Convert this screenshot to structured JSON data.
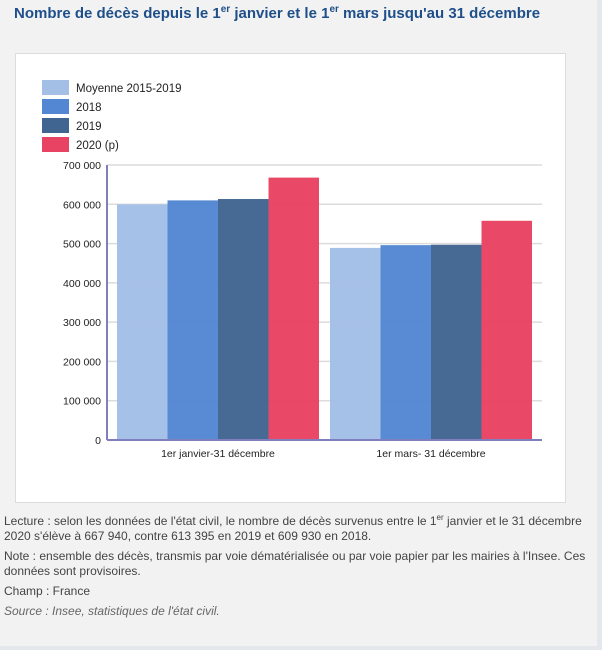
{
  "title": {
    "part1": "Nombre de décès depuis le 1",
    "sup1": "er",
    "part2": " janvier et le 1",
    "sup2": "er",
    "part3": " mars jusqu'au 31 décembre"
  },
  "colors": {
    "moyenne": "#a3bfe6",
    "y2018": "#5487d3",
    "y2019": "#406591",
    "y2020": "#e84362",
    "axis": "#7f7fbf",
    "grid": "#dcdcdc"
  },
  "chart_data": {
    "type": "bar",
    "title": "Nombre de décès depuis le 1er janvier et le 1er mars jusqu'au 31 décembre",
    "xlabel": "",
    "ylabel": "",
    "categories": [
      "1er janvier-31 décembre",
      "1er mars- 31 décembre"
    ],
    "series": [
      {
        "name": "Moyenne 2015-2019",
        "color_key": "moyenne",
        "values": [
          600000,
          489000
        ]
      },
      {
        "name": "2018",
        "color_key": "y2018",
        "values": [
          609930,
          496000
        ]
      },
      {
        "name": "2019",
        "color_key": "y2019",
        "values": [
          613395,
          497000
        ]
      },
      {
        "name": "2020 (p)",
        "color_key": "y2020",
        "values": [
          667940,
          558000
        ]
      }
    ],
    "ylim": [
      0,
      700000
    ],
    "yticks": [
      0,
      100000,
      200000,
      300000,
      400000,
      500000,
      600000,
      700000
    ],
    "ytick_labels": [
      "0",
      "100 000",
      "200 000",
      "300 000",
      "400 000",
      "500 000",
      "600 000",
      "700 000"
    ],
    "grid": true,
    "legend_position": "top-left"
  },
  "notes": {
    "lecture_part1": "Lecture : selon les données de l'état civil, le nombre de décès survenus entre le 1",
    "lecture_sup": "er",
    "lecture_part2": " janvier et le 31 décembre 2020 s'élève à 667 940, contre 613 395 en 2019 et 609 930 en 2018.",
    "note": "Note : ensemble des décès, transmis par voie dématérialisée ou par voie papier par les mairies à l'Insee. Ces données sont provisoires.",
    "champ": "Champ : France",
    "source": "Source : Insee, statistiques de l'état civil."
  }
}
